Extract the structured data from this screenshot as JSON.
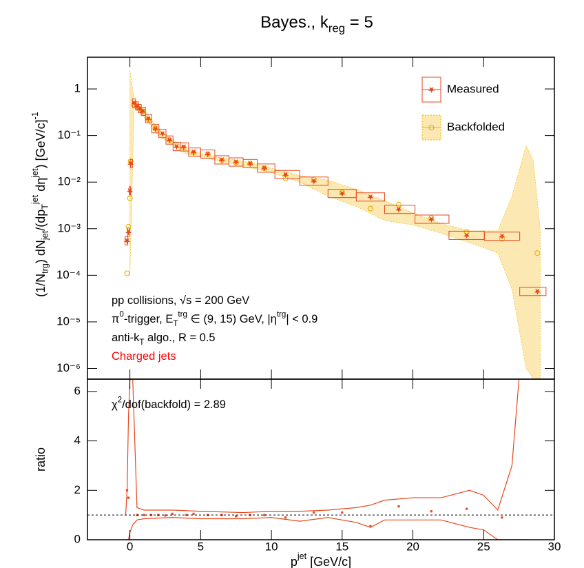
{
  "chart_data": [
    {
      "type": "scatter",
      "log_y": true,
      "title": [
        [
          "Bayes., k",
          ""
        ],
        [
          "reg",
          "sub"
        ],
        [
          " = 5",
          ""
        ]
      ],
      "y_label": [
        [
          "(1/N",
          ""
        ],
        [
          "trg",
          "sub"
        ],
        [
          ") dN",
          ""
        ],
        [
          "jet",
          "sub"
        ],
        [
          "/(dp",
          ""
        ],
        [
          "T",
          "sub"
        ],
        [
          "jet",
          "sup"
        ],
        [
          " dη",
          ""
        ],
        [
          "jet",
          "sup"
        ],
        [
          ") [GeV/c]",
          ""
        ],
        [
          "-1",
          "sup"
        ]
      ],
      "xlim": [
        -3,
        30
      ],
      "ylim": [
        5.9e-07,
        4.8
      ],
      "xticks": [
        0,
        5,
        10,
        15,
        20,
        25,
        30
      ],
      "yticks": [
        {
          "value": 1e-06,
          "label": "10⁻⁶"
        },
        {
          "value": 1e-05,
          "label": "10⁻⁵"
        },
        {
          "value": 0.0001,
          "label": "10⁻⁴"
        },
        {
          "value": 0.001,
          "label": "10⁻³"
        },
        {
          "value": 0.01,
          "label": "10⁻²"
        },
        {
          "value": 0.1,
          "label": "10⁻¹"
        },
        1
      ],
      "legend": "upper right",
      "series": [
        {
          "name": "Backfolded",
          "color": "#f2b400",
          "marker": "circle",
          "x": [
            -0.2,
            -0.1,
            0,
            0.05,
            0.3,
            0.5,
            0.9,
            1.3,
            1.8,
            2.8,
            3.8,
            4.5,
            5.5,
            6.5,
            7.5,
            8.5,
            9.5,
            11,
            13,
            15,
            17,
            19,
            21.3,
            23.8,
            26.3,
            28.8
          ],
          "values": [
            0.00011,
            0.0011,
            0.0045,
            0.028,
            0.45,
            0.42,
            0.33,
            0.22,
            0.14,
            0.08,
            0.055,
            0.043,
            0.04,
            0.029,
            0.026,
            0.025,
            0.02,
            0.012,
            0.0115,
            0.006,
            0.0027,
            0.0033,
            0.0017,
            0.00085,
            0.0006,
            0.0003
          ],
          "band_x": [
            0,
            0.3,
            1,
            2,
            4,
            6,
            8,
            10,
            12,
            14,
            16,
            18,
            20,
            22,
            24,
            26,
            27,
            28,
            28.5,
            29
          ],
          "band_upper": [
            2.5,
            0.6,
            0.35,
            0.14,
            0.05,
            0.035,
            0.028,
            0.02,
            0.014,
            0.011,
            0.007,
            0.004,
            0.0022,
            0.0013,
            0.0009,
            0.0009,
            0.005,
            0.06,
            0.03,
            0.001
          ],
          "band_lower": [
            0.0001,
            0.4,
            0.25,
            0.1,
            0.04,
            0.03,
            0.022,
            0.016,
            0.01,
            0.005,
            0.003,
            0.0015,
            0.0012,
            0.0008,
            0.0005,
            0.0003,
            5e-05,
            1e-06,
            6e-07,
            6e-07
          ]
        },
        {
          "name": "Measured",
          "color": "#e8461b",
          "marker": "star",
          "boxes": true,
          "x": [
            -0.2,
            -0.1,
            0,
            0.05,
            0.3,
            0.5,
            0.7,
            0.9,
            1.3,
            1.8,
            2.3,
            2.8,
            3.3,
            3.8,
            4.5,
            5.5,
            6.5,
            7.5,
            8.5,
            9.5,
            11,
            13,
            15,
            17,
            19,
            21.3,
            23.8,
            26.3,
            28.8
          ],
          "values": [
            0.00055,
            0.00085,
            0.0065,
            0.025,
            0.5,
            0.43,
            0.38,
            0.33,
            0.23,
            0.14,
            0.11,
            0.08,
            0.058,
            0.057,
            0.044,
            0.04,
            0.03,
            0.027,
            0.025,
            0.02,
            0.0145,
            0.0105,
            0.0057,
            0.0048,
            0.0026,
            0.0016,
            0.00072,
            0.00069,
            4.5e-05
          ]
        }
      ],
      "annotations": [
        {
          "text": [
            [
              "pp collisions, √s = 200 GeV",
              ""
            ]
          ],
          "color": "#000000"
        },
        {
          "text": [
            [
              "π",
              ""
            ],
            [
              "0",
              "sup"
            ],
            [
              "-trigger, E",
              ""
            ],
            [
              "T",
              "sub"
            ],
            [
              "trg",
              "sup"
            ],
            [
              " ∈ (9, 15) GeV, |η",
              ""
            ],
            [
              "trg",
              "sup"
            ],
            [
              "| < 0.9",
              ""
            ]
          ],
          "color": "#000000"
        },
        {
          "text": [
            [
              "anti-k",
              ""
            ],
            [
              "T",
              "sub"
            ],
            [
              " algo., R = 0.5",
              ""
            ]
          ],
          "color": "#000000"
        },
        {
          "text": [
            [
              "Charged jets",
              ""
            ]
          ],
          "color": "#ff0000"
        }
      ]
    },
    {
      "type": "scatter",
      "log_y": false,
      "y_label": [
        [
          "ratio",
          ""
        ]
      ],
      "x_label": [
        [
          "p",
          ""
        ],
        [
          "jet",
          "sup"
        ],
        [
          " [GeV/c]",
          ""
        ]
      ],
      "xlim": [
        -3,
        30
      ],
      "ylim": [
        0,
        6.5
      ],
      "xticks": [
        0,
        5,
        10,
        15,
        20,
        25,
        30
      ],
      "show_x_tick_labels": true,
      "yticks": [
        0,
        2,
        4,
        6
      ],
      "reference_line": 1,
      "series": [
        {
          "color": "#e8461b",
          "marker": "square",
          "band_style": "lines",
          "x": [
            -0.2,
            -0.1,
            0.5,
            1,
            1.5,
            2,
            2.5,
            3,
            4,
            4.5,
            5.5,
            6.5,
            7.5,
            8.5,
            9.5,
            11,
            13,
            15,
            17,
            19,
            21.3,
            23.8,
            26.3
          ],
          "values": [
            2.0,
            1.7,
            1.0,
            1.0,
            1.0,
            1.0,
            0.98,
            1.05,
            1.0,
            1.05,
            1.0,
            1.0,
            0.95,
            1.0,
            1.0,
            0.9,
            1.1,
            1.1,
            0.55,
            1.35,
            1.15,
            1.25,
            0.9
          ],
          "band_x": [
            -0.3,
            -0.2,
            -0.1,
            0,
            0.2,
            0.5,
            1,
            3,
            5,
            8,
            10,
            12,
            14,
            16,
            17,
            18,
            20,
            22,
            24,
            25,
            26,
            27,
            27.5,
            28
          ],
          "band_upper": [
            1,
            2,
            5,
            6.5,
            6.5,
            1.3,
            1.2,
            1.2,
            1.15,
            1.1,
            1.15,
            1.15,
            1.2,
            1.3,
            1.4,
            1.6,
            1.7,
            1.7,
            2.0,
            1.8,
            1.2,
            3,
            6.5,
            6.5
          ],
          "band_lower": [
            0,
            0,
            0,
            0.3,
            0.6,
            0.8,
            0.85,
            0.9,
            0.85,
            0.85,
            0.9,
            0.75,
            0.9,
            0.7,
            0.5,
            0.8,
            0.8,
            0.8,
            0.5,
            0.4,
            0,
            0,
            0,
            0
          ]
        }
      ],
      "annotations": [
        {
          "text": [
            [
              "χ",
              ""
            ],
            [
              "2",
              "sup"
            ],
            [
              "/dof(backfold) = 2.89",
              ""
            ]
          ],
          "color": "#000000"
        }
      ]
    }
  ]
}
